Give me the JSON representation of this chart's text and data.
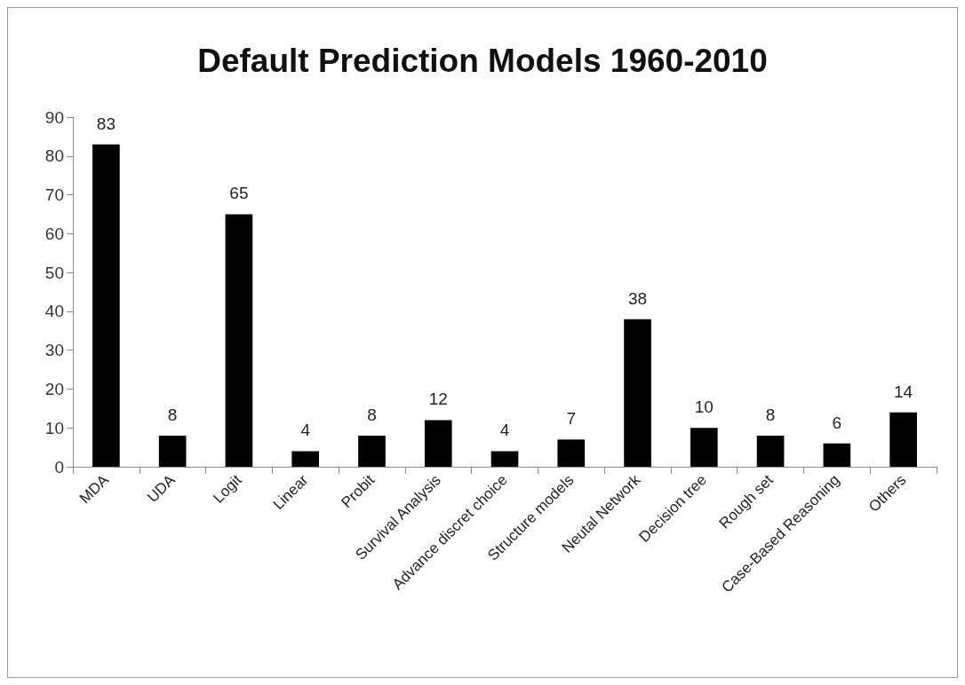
{
  "chart_data": {
    "type": "bar",
    "title": "Default Prediction Models 1960-2010",
    "categories": [
      "MDA",
      "UDA",
      "Logit",
      "Linear",
      "Probit",
      "Survival Analysis",
      "Advance discret choice",
      "Structure models",
      "Neutal Network",
      "Decision tree",
      "Rough set",
      "Case-Based Reasoning",
      "Others"
    ],
    "values": [
      83,
      8,
      65,
      4,
      8,
      12,
      4,
      7,
      38,
      10,
      8,
      6,
      14
    ],
    "color": "#000000",
    "ylim": [
      0,
      90
    ],
    "yticks": [
      0,
      10,
      20,
      30,
      40,
      50,
      60,
      70,
      80,
      90
    ],
    "data_labels": true
  }
}
